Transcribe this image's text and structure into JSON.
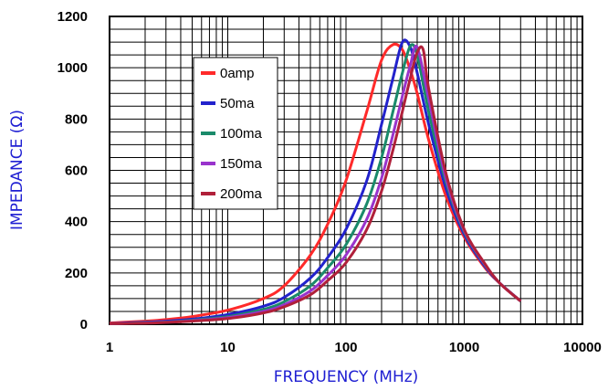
{
  "chart_data": {
    "type": "line",
    "title": "",
    "xlabel": "FREQUENCY (MHz)",
    "ylabel": "IMPEDANCE (Ω)",
    "xscale": "log",
    "xlim": [
      1,
      10000
    ],
    "ylim": [
      0,
      1200
    ],
    "grid": true,
    "legend_position": "upper-left",
    "x_ticks": [
      "1",
      "10",
      "100",
      "1000",
      "10000"
    ],
    "y_ticks": [
      "0",
      "200",
      "400",
      "600",
      "800",
      "1000",
      "1200"
    ],
    "series": [
      {
        "name": "0amp",
        "color": "#ff2a2a",
        "x": [
          1,
          2,
          3,
          5,
          10,
          20,
          30,
          50,
          70,
          100,
          150,
          200,
          250,
          300,
          350,
          400,
          500,
          700,
          1000,
          1500,
          2000,
          3000
        ],
        "y": [
          5,
          12,
          18,
          30,
          55,
          100,
          150,
          270,
          390,
          560,
          830,
          1030,
          1090,
          1070,
          990,
          900,
          720,
          500,
          340,
          220,
          160,
          90
        ]
      },
      {
        "name": "50ma",
        "color": "#2222cc",
        "x": [
          1,
          2,
          3,
          5,
          10,
          20,
          30,
          50,
          70,
          100,
          150,
          200,
          250,
          300,
          350,
          400,
          500,
          700,
          1000,
          1500,
          2000,
          3000
        ],
        "y": [
          3,
          8,
          12,
          20,
          38,
          70,
          105,
          180,
          260,
          370,
          560,
          780,
          960,
          1100,
          1080,
          980,
          780,
          530,
          350,
          225,
          160,
          90
        ]
      },
      {
        "name": "100ma",
        "color": "#1a8a6a",
        "x": [
          1,
          2,
          3,
          5,
          10,
          20,
          30,
          50,
          70,
          100,
          150,
          200,
          250,
          300,
          350,
          400,
          500,
          700,
          1000,
          1500,
          2000,
          3000
        ],
        "y": [
          2,
          6,
          9,
          16,
          30,
          58,
          88,
          150,
          220,
          310,
          470,
          650,
          830,
          980,
          1085,
          1050,
          830,
          555,
          360,
          230,
          160,
          90
        ]
      },
      {
        "name": "150ma",
        "color": "#9933cc",
        "x": [
          1,
          2,
          3,
          5,
          10,
          20,
          30,
          50,
          70,
          100,
          150,
          200,
          250,
          300,
          350,
          400,
          500,
          700,
          1000,
          1500,
          2000,
          3000
        ],
        "y": [
          2,
          5,
          8,
          14,
          26,
          50,
          76,
          130,
          190,
          270,
          410,
          570,
          740,
          890,
          1010,
          1080,
          880,
          570,
          365,
          232,
          160,
          90
        ]
      },
      {
        "name": "200ma",
        "color": "#b0203a",
        "x": [
          1,
          2,
          3,
          5,
          10,
          20,
          30,
          50,
          70,
          100,
          150,
          200,
          250,
          300,
          350,
          400,
          450,
          500,
          700,
          1000,
          1500,
          2000,
          3000
        ],
        "y": [
          2,
          4,
          7,
          12,
          22,
          44,
          68,
          115,
          170,
          240,
          370,
          520,
          680,
          830,
          960,
          1060,
          1070,
          920,
          590,
          370,
          235,
          160,
          90
        ]
      }
    ]
  }
}
